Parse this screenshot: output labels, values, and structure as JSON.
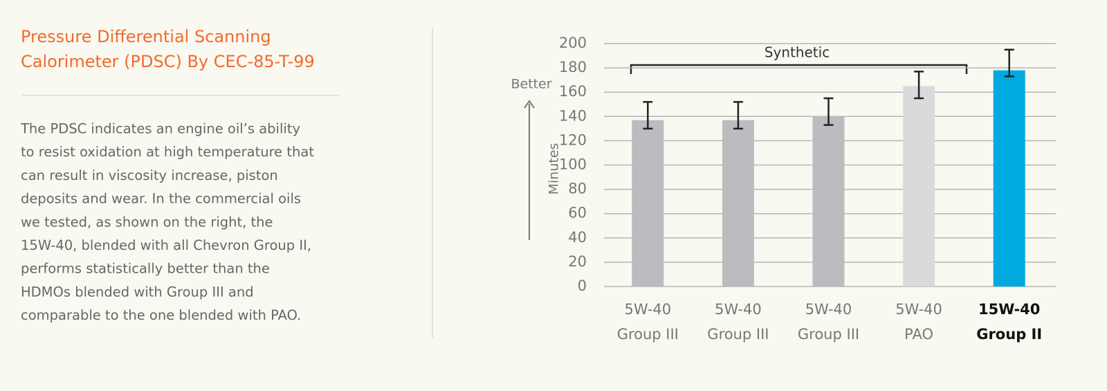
{
  "title_lines": [
    "Pressure Differential Scanning",
    "Calorimeter (PDSC) By CEC-85-T-99"
  ],
  "body_lines": [
    "The PDSC indicates an engine oil’s ability",
    "to resist oxidation at high temperature that",
    "can result in viscosity increase, piston",
    "deposits and wear. In the commercial oils",
    "we tested, as shown on the right, the",
    "15W-40, blended with all Chevron Group II,",
    "performs statistically better than the",
    "HDMOs blended with Group III and",
    "comparable to the one blended with PAO."
  ],
  "chart_data": {
    "type": "bar",
    "y_label": "Minutes",
    "better_label": "Better",
    "bracket_label": "Synthetic",
    "categories": [
      [
        "5W-40",
        "Group III"
      ],
      [
        "5W-40",
        "Group III"
      ],
      [
        "5W-40",
        "Group III"
      ],
      [
        "5W-40",
        "PAO"
      ],
      [
        "15W-40",
        "Group II"
      ]
    ],
    "values": [
      137,
      137,
      140,
      165,
      178
    ],
    "error_bars": [
      [
        130,
        152
      ],
      [
        130,
        152
      ],
      [
        133,
        155
      ],
      [
        155,
        177
      ],
      [
        173,
        195
      ]
    ],
    "colors": [
      "#bbbcbf",
      "#bbbcbf",
      "#bbbcbf",
      "#d9dadb",
      "#00a9e0"
    ],
    "ylim": [
      0,
      200
    ],
    "yticks": [
      0,
      20,
      40,
      60,
      80,
      100,
      120,
      140,
      160,
      180,
      200
    ],
    "grid": true
  }
}
